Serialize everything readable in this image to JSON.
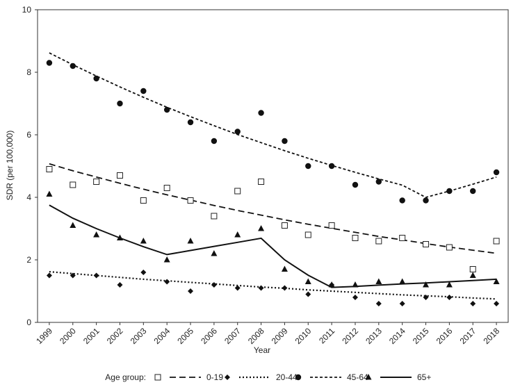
{
  "chart_data": {
    "type": "scatter",
    "xlabel": "Year",
    "ylabel": "SDR (per 100,000)",
    "categories": [
      "1999",
      "2000",
      "2001",
      "2002",
      "2003",
      "2004",
      "2005",
      "2006",
      "2007",
      "2008",
      "2009",
      "2010",
      "2011",
      "2012",
      "2013",
      "2014",
      "2015",
      "2016",
      "2017",
      "2018"
    ],
    "ylim": [
      0,
      10
    ],
    "yticks": [
      "0",
      "2",
      "4",
      "6",
      "8",
      "10"
    ],
    "legend_title": "Age group:",
    "legend_position": "bottom",
    "series": [
      {
        "name": "0-19",
        "marker": "square-open",
        "line_style": "dashed",
        "values": [
          4.9,
          4.4,
          4.5,
          4.7,
          3.9,
          4.3,
          3.9,
          3.4,
          4.2,
          4.5,
          3.1,
          2.8,
          3.1,
          2.7,
          2.6,
          2.7,
          2.5,
          2.4,
          1.7,
          2.6
        ],
        "trend": [
          5.07,
          4.85,
          4.65,
          4.45,
          4.26,
          4.08,
          3.91,
          3.74,
          3.58,
          3.43,
          3.28,
          3.14,
          3.01,
          2.88,
          2.75,
          2.64,
          2.52,
          2.41,
          2.31,
          2.21
        ]
      },
      {
        "name": "20-44",
        "marker": "diamond",
        "line_style": "dotted",
        "values": [
          1.5,
          1.5,
          1.5,
          1.2,
          1.6,
          1.3,
          1.0,
          1.2,
          1.1,
          1.1,
          1.1,
          0.9,
          1.2,
          0.8,
          0.6,
          0.6,
          0.8,
          0.8,
          0.6,
          0.6
        ],
        "trend": [
          1.62,
          1.56,
          1.5,
          1.44,
          1.38,
          1.33,
          1.28,
          1.23,
          1.18,
          1.13,
          1.09,
          1.04,
          1.0,
          0.96,
          0.92,
          0.88,
          0.85,
          0.82,
          0.78,
          0.75
        ]
      },
      {
        "name": "45-64",
        "marker": "circle",
        "line_style": "short-dash",
        "values": [
          8.3,
          8.2,
          7.8,
          7.0,
          7.4,
          6.8,
          6.4,
          5.8,
          6.1,
          6.7,
          5.8,
          5.0,
          5.0,
          4.4,
          4.5,
          3.9,
          3.9,
          4.2,
          4.2,
          4.8
        ],
        "trend": [
          8.62,
          8.24,
          7.88,
          7.53,
          7.2,
          6.88,
          6.58,
          6.29,
          6.01,
          5.75,
          5.49,
          5.25,
          5.02,
          4.8,
          4.59,
          4.39,
          4.0,
          4.2,
          4.42,
          4.65
        ]
      },
      {
        "name": "65+",
        "marker": "triangle",
        "line_style": "solid",
        "values": [
          4.1,
          3.1,
          2.8,
          2.7,
          2.6,
          2.0,
          2.6,
          2.2,
          2.8,
          3.0,
          1.7,
          1.3,
          1.2,
          1.2,
          1.3,
          1.3,
          1.2,
          1.2,
          1.5,
          1.3
        ],
        "trend": [
          3.75,
          3.33,
          3.0,
          2.7,
          2.42,
          2.17,
          2.3,
          2.43,
          2.56,
          2.69,
          2.0,
          1.51,
          1.12,
          1.15,
          1.19,
          1.23,
          1.26,
          1.3,
          1.34,
          1.38
        ]
      }
    ]
  }
}
